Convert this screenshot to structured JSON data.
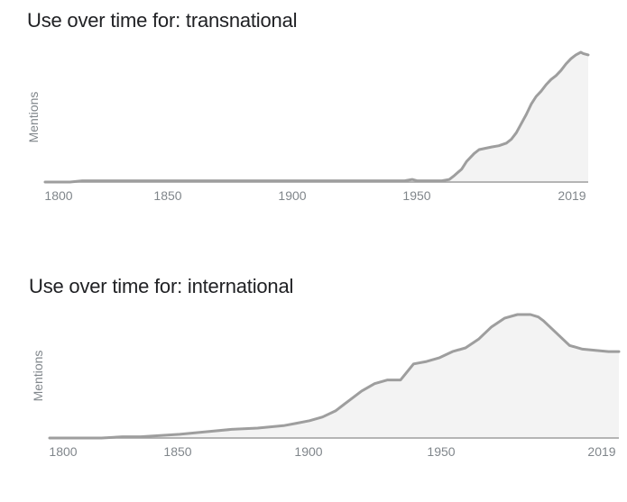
{
  "charts": [
    {
      "title": "Use over time for: transnational",
      "chart_data": {
        "type": "area",
        "title": "Use over time for: transnational",
        "xlabel": "",
        "ylabel": "Mentions",
        "xlim": [
          1800,
          2019
        ],
        "ylim": [
          0,
          100
        ],
        "x_ticks": [
          "1800",
          "1850",
          "1900",
          "1950",
          "2019"
        ],
        "grid": false,
        "x": [
          1800,
          1810,
          1815,
          1820,
          1850,
          1900,
          1940,
          1945,
          1948,
          1950,
          1955,
          1960,
          1963,
          1965,
          1968,
          1970,
          1973,
          1975,
          1980,
          1983,
          1986,
          1988,
          1990,
          1992,
          1994,
          1996,
          1998,
          2000,
          2002,
          2004,
          2006,
          2008,
          2010,
          2012,
          2014,
          2016,
          2017,
          2019
        ],
        "values": [
          0,
          0,
          1,
          1,
          1,
          1,
          1,
          1,
          2,
          1,
          1,
          1,
          2,
          5,
          10,
          16,
          22,
          25,
          27,
          28,
          30,
          33,
          38,
          45,
          52,
          60,
          66,
          70,
          75,
          79,
          82,
          86,
          91,
          95,
          98,
          100,
          99,
          98
        ]
      }
    },
    {
      "title": "Use over time for: international",
      "chart_data": {
        "type": "area",
        "title": "Use over time for: international",
        "xlabel": "",
        "ylabel": "Mentions",
        "xlim": [
          1800,
          2019
        ],
        "ylim": [
          0,
          100
        ],
        "x_ticks": [
          "1800",
          "1850",
          "1900",
          "1950",
          "2019"
        ],
        "grid": false,
        "x": [
          1800,
          1820,
          1828,
          1835,
          1850,
          1860,
          1870,
          1880,
          1890,
          1895,
          1900,
          1905,
          1910,
          1915,
          1920,
          1925,
          1930,
          1935,
          1940,
          1945,
          1950,
          1955,
          1960,
          1965,
          1970,
          1975,
          1980,
          1985,
          1988,
          1990,
          1995,
          2000,
          2005,
          2010,
          2015,
          2019
        ],
        "values": [
          0,
          0,
          1,
          1,
          3,
          5,
          7,
          8,
          10,
          12,
          14,
          17,
          22,
          30,
          38,
          44,
          47,
          47,
          60,
          62,
          65,
          70,
          73,
          80,
          90,
          97,
          100,
          100,
          98,
          95,
          85,
          75,
          72,
          71,
          70,
          70
        ]
      }
    }
  ],
  "colors": {
    "line": "#9e9e9e",
    "fill": "#f3f3f3",
    "axis": "#9e9e9e",
    "text": "#80868b"
  }
}
